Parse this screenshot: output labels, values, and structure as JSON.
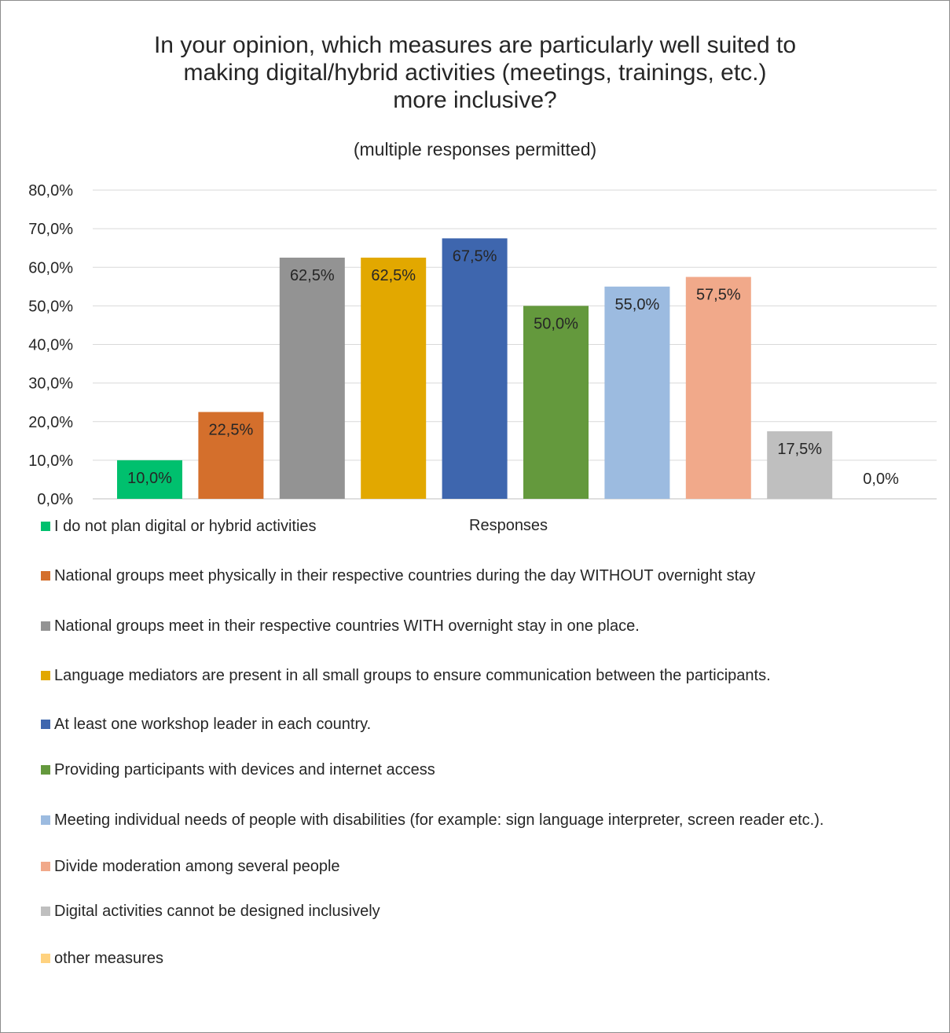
{
  "chart_data": {
    "type": "bar",
    "title": "In your opinion, which measures are particularly well suited to making digital/hybrid activities (meetings, trainings, etc.) more inclusive?",
    "title_lines": [
      "In your opinion, which measures are particularly well suited to",
      "making digital/hybrid activities (meetings, trainings, etc.)",
      "more inclusive?"
    ],
    "subtitle": "(multiple responses permitted)",
    "xlabel": "Responses",
    "ylabel": "",
    "ylim": [
      0,
      80
    ],
    "yticks": [
      "0,0%",
      "10,0%",
      "20,0%",
      "30,0%",
      "40,0%",
      "50,0%",
      "60,0%",
      "70,0%",
      "80,0%"
    ],
    "grid": true,
    "legend_position": "bottom",
    "categories": [
      "Responses"
    ],
    "series": [
      {
        "name": "I do not plan digital or hybrid activities",
        "value": 10.0,
        "label": "10,0%",
        "color": "#00C06E"
      },
      {
        "name": "National groups meet physically in their respective countries during the day WITHOUT overnight stay",
        "value": 22.5,
        "label": "22,5%",
        "color": "#D46F2C"
      },
      {
        "name": "National groups meet in their respective countries WITH overnight stay in one place.",
        "value": 62.5,
        "label": "62,5%",
        "color": "#939393"
      },
      {
        "name": "Language mediators are present in all small groups to ensure communication between the participants.",
        "value": 62.5,
        "label": "62,5%",
        "color": "#E2A800"
      },
      {
        "name": "At least one workshop leader in each country.",
        "value": 67.5,
        "label": "67,5%",
        "color": "#3E66AE"
      },
      {
        "name": "Providing participants with devices and internet access",
        "value": 50.0,
        "label": "50,0%",
        "color": "#64993D"
      },
      {
        "name": "Meeting individual needs of people with disabilities (for example: sign language interpreter, screen reader etc.).",
        "value": 55.0,
        "label": "55,0%",
        "color": "#9CBBE0"
      },
      {
        "name": "Divide moderation among several people",
        "value": 57.5,
        "label": "57,5%",
        "color": "#F1A98A"
      },
      {
        "name": "Digital activities cannot be designed inclusively",
        "value": 17.5,
        "label": "17,5%",
        "color": "#BFBFBF"
      },
      {
        "name": "other measures",
        "value": 0.0,
        "label": "0,0%",
        "color": "#FFD27F"
      }
    ]
  }
}
